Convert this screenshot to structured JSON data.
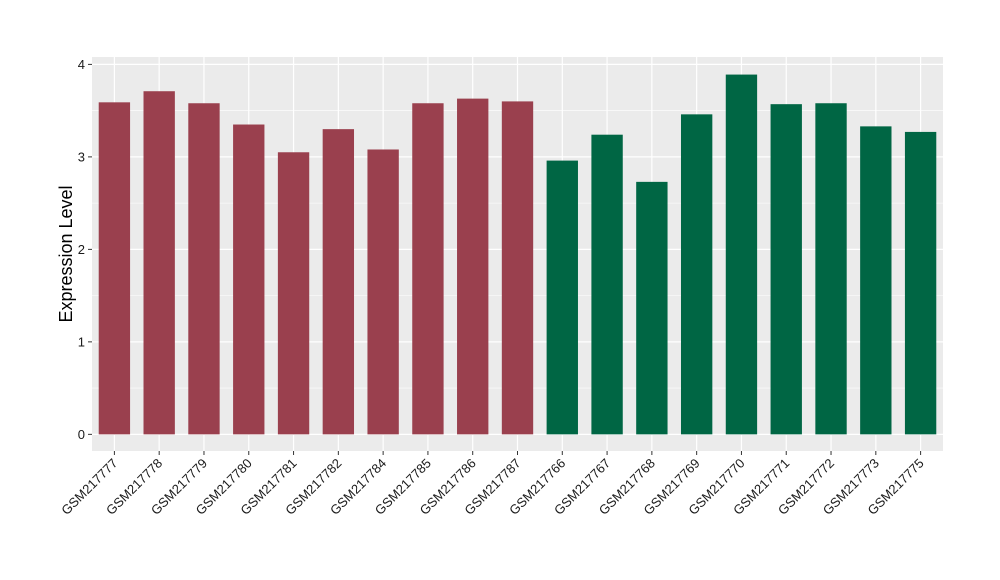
{
  "chart_data": {
    "type": "bar",
    "ylabel": "Expression Level",
    "xlabel": "",
    "ylim": [
      -0.18,
      4.08
    ],
    "yticks": [
      0,
      1,
      2,
      3,
      4
    ],
    "grid": true,
    "legend": "none",
    "categories": [
      "GSM217777",
      "GSM217778",
      "GSM217779",
      "GSM217780",
      "GSM217781",
      "GSM217782",
      "GSM217784",
      "GSM217785",
      "GSM217786",
      "GSM217787",
      "GSM217766",
      "GSM217767",
      "GSM217768",
      "GSM217769",
      "GSM217770",
      "GSM217771",
      "GSM217772",
      "GSM217773",
      "GSM217775"
    ],
    "values": [
      3.59,
      3.71,
      3.58,
      3.35,
      3.05,
      3.3,
      3.08,
      3.58,
      3.63,
      3.6,
      2.96,
      3.24,
      2.73,
      3.46,
      3.89,
      3.57,
      3.58,
      3.33,
      3.27
    ],
    "groups": [
      0,
      0,
      0,
      0,
      0,
      0,
      0,
      0,
      0,
      0,
      1,
      1,
      1,
      1,
      1,
      1,
      1,
      1,
      1
    ],
    "colors": {
      "group0": "#9a404e",
      "group1": "#006644",
      "panel": "#ebebeb",
      "grid": "#ffffff"
    }
  }
}
